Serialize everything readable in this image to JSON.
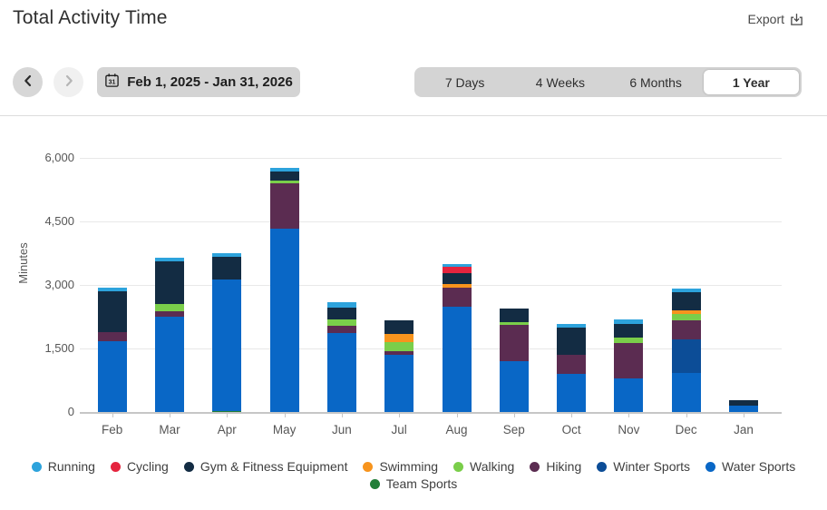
{
  "header": {
    "title": "Total Activity Time",
    "export_label": "Export"
  },
  "controls": {
    "date_range": "Feb 1, 2025 - Jan 31, 2026",
    "calendar_day": "31",
    "range_tabs": {
      "labels": [
        "7 Days",
        "4 Weeks",
        "6 Months",
        "1 Year"
      ],
      "selected": "1 Year"
    }
  },
  "chart_data": {
    "type": "bar",
    "stacked": true,
    "title": "Total Activity Time",
    "xlabel": "",
    "ylabel": "Minutes",
    "ylim": [
      0,
      6000
    ],
    "yticks": [
      0,
      1500,
      3000,
      4500,
      6000
    ],
    "ytick_labels": [
      "0",
      "1,500",
      "3,000",
      "4,500",
      "6,000"
    ],
    "grid": true,
    "legend_position": "bottom",
    "stack_order": "reverse of legend order (Team Sports at bottom, Running on top)",
    "categories": [
      "Feb",
      "Mar",
      "Apr",
      "May",
      "Jun",
      "Jul",
      "Aug",
      "Sep",
      "Oct",
      "Nov",
      "Dec",
      "Jan"
    ],
    "series": [
      {
        "name": "Running",
        "color": "#2da3dc",
        "values": [
          85,
          85,
          85,
          85,
          130,
          0,
          65,
          0,
          90,
          105,
          70,
          0
        ]
      },
      {
        "name": "Cycling",
        "color": "#e5243e",
        "values": [
          0,
          0,
          0,
          0,
          0,
          0,
          150,
          0,
          0,
          0,
          0,
          0
        ]
      },
      {
        "name": "Gym & Fitness Equipment",
        "color": "#132c43",
        "values": [
          965,
          1005,
          535,
          215,
          280,
          320,
          255,
          320,
          640,
          320,
          440,
          130
        ]
      },
      {
        "name": "Swimming",
        "color": "#f7941d",
        "values": [
          0,
          0,
          0,
          0,
          0,
          190,
          85,
          0,
          0,
          0,
          85,
          0
        ]
      },
      {
        "name": "Walking",
        "color": "#7ace4a",
        "values": [
          0,
          170,
          0,
          65,
          150,
          215,
          0,
          70,
          0,
          130,
          135,
          0
        ]
      },
      {
        "name": "Hiking",
        "color": "#5b2c51",
        "values": [
          215,
          130,
          0,
          1050,
          170,
          85,
          455,
          855,
          440,
          835,
          450,
          0
        ]
      },
      {
        "name": "Winter Sports",
        "color": "#0c4d97",
        "values": [
          0,
          0,
          0,
          0,
          0,
          0,
          0,
          0,
          0,
          0,
          790,
          0
        ]
      },
      {
        "name": "Water Sports",
        "color": "#0967c6",
        "values": [
          1670,
          2250,
          3100,
          4330,
          1860,
          1345,
          2475,
          1190,
          905,
          790,
          930,
          140
        ]
      },
      {
        "name": "Team Sports",
        "color": "#217e38",
        "values": [
          0,
          0,
          30,
          0,
          0,
          0,
          0,
          0,
          0,
          0,
          0,
          0
        ]
      }
    ],
    "legend_rows": [
      8,
      1
    ]
  }
}
